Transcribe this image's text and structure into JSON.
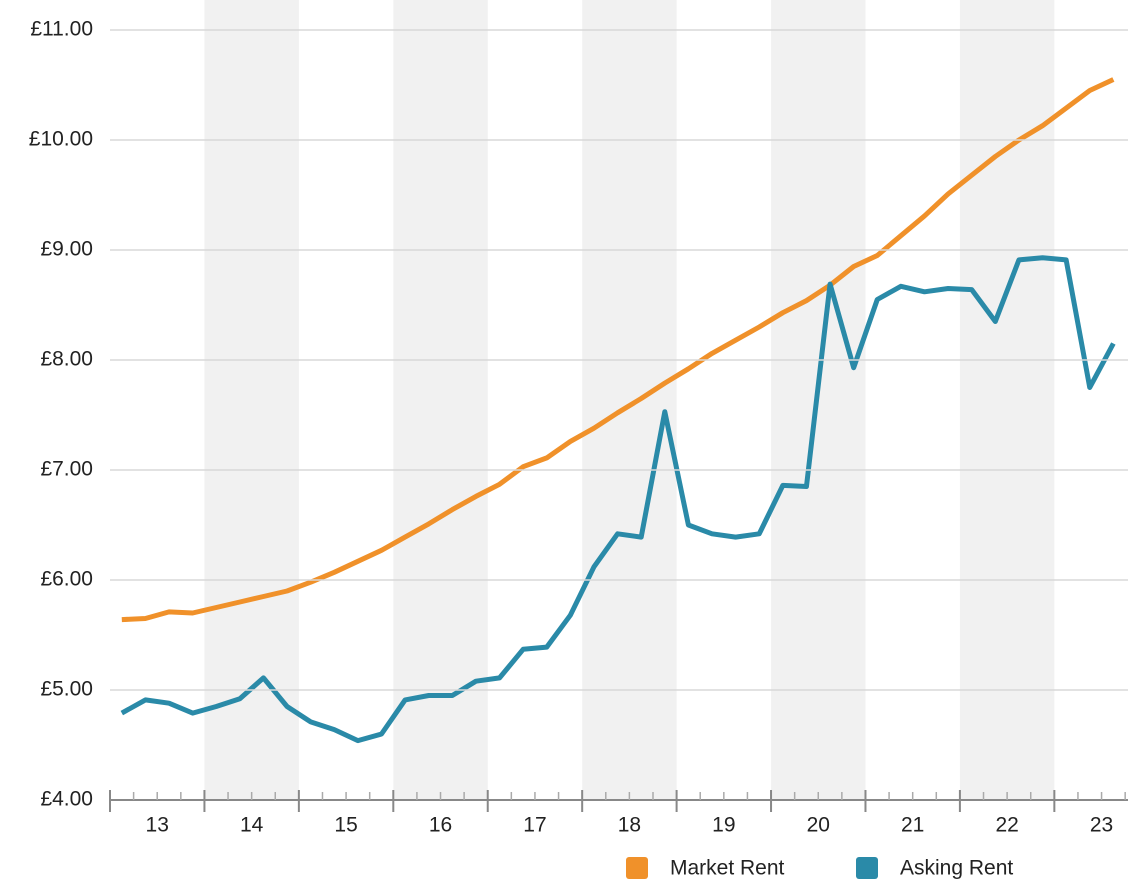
{
  "chart_data": {
    "type": "line",
    "x": [
      13.125,
      13.375,
      13.625,
      13.875,
      14.125,
      14.375,
      14.625,
      14.875,
      15.125,
      15.375,
      15.625,
      15.875,
      16.125,
      16.375,
      16.625,
      16.875,
      17.125,
      17.375,
      17.625,
      17.875,
      18.125,
      18.375,
      18.625,
      18.875,
      19.125,
      19.375,
      19.625,
      19.875,
      20.125,
      20.375,
      20.625,
      20.875,
      21.125,
      21.375,
      21.625,
      21.875,
      22.125,
      22.375,
      22.625,
      22.875,
      23.125,
      23.375,
      23.625
    ],
    "series": [
      {
        "name": "Market Rent",
        "color": "#f0912a",
        "values": [
          5.64,
          5.65,
          5.71,
          5.7,
          5.75,
          5.8,
          5.85,
          5.9,
          5.98,
          6.07,
          6.17,
          6.27,
          6.39,
          6.51,
          6.64,
          6.76,
          6.87,
          7.03,
          7.11,
          7.26,
          7.38,
          7.52,
          7.65,
          7.79,
          7.92,
          8.06,
          8.18,
          8.3,
          8.43,
          8.54,
          8.68,
          8.85,
          8.95,
          9.13,
          9.31,
          9.51,
          9.68,
          9.85,
          10.0,
          10.13,
          10.29,
          10.45,
          10.55
        ]
      },
      {
        "name": "Asking Rent",
        "color": "#2a8aa8",
        "values": [
          4.79,
          4.91,
          4.88,
          4.79,
          4.85,
          4.92,
          5.11,
          4.85,
          4.71,
          4.64,
          4.54,
          4.6,
          4.91,
          4.95,
          4.95,
          5.08,
          5.11,
          5.37,
          5.39,
          5.68,
          6.12,
          6.42,
          6.39,
          7.53,
          6.5,
          6.42,
          6.39,
          6.42,
          6.86,
          6.85,
          8.69,
          7.93,
          8.55,
          8.67,
          8.62,
          8.65,
          8.64,
          8.35,
          8.91,
          8.93,
          8.91,
          7.75,
          8.15
        ]
      }
    ],
    "xlim": [
      13,
      23.78
    ],
    "xticks": [
      {
        "value": 13.5,
        "label": "13"
      },
      {
        "value": 14.5,
        "label": "14"
      },
      {
        "value": 15.5,
        "label": "15"
      },
      {
        "value": 16.5,
        "label": "16"
      },
      {
        "value": 17.5,
        "label": "17"
      },
      {
        "value": 18.5,
        "label": "18"
      },
      {
        "value": 19.5,
        "label": "19"
      },
      {
        "value": 20.5,
        "label": "20"
      },
      {
        "value": 21.5,
        "label": "21"
      },
      {
        "value": 22.5,
        "label": "22"
      },
      {
        "value": 23.5,
        "label": "23"
      }
    ],
    "ylim": [
      4,
      11
    ],
    "yticks": [
      {
        "value": 4,
        "label": "£4.00"
      },
      {
        "value": 5,
        "label": "£5.00"
      },
      {
        "value": 6,
        "label": "£6.00"
      },
      {
        "value": 7,
        "label": "£7.00"
      },
      {
        "value": 8,
        "label": "£8.00"
      },
      {
        "value": 9,
        "label": "£9.00"
      },
      {
        "value": 10,
        "label": "£10.00"
      },
      {
        "value": 11,
        "label": "£11.00"
      }
    ],
    "grid": true,
    "alternate_year_shading": true,
    "legend": "bottom-right"
  }
}
